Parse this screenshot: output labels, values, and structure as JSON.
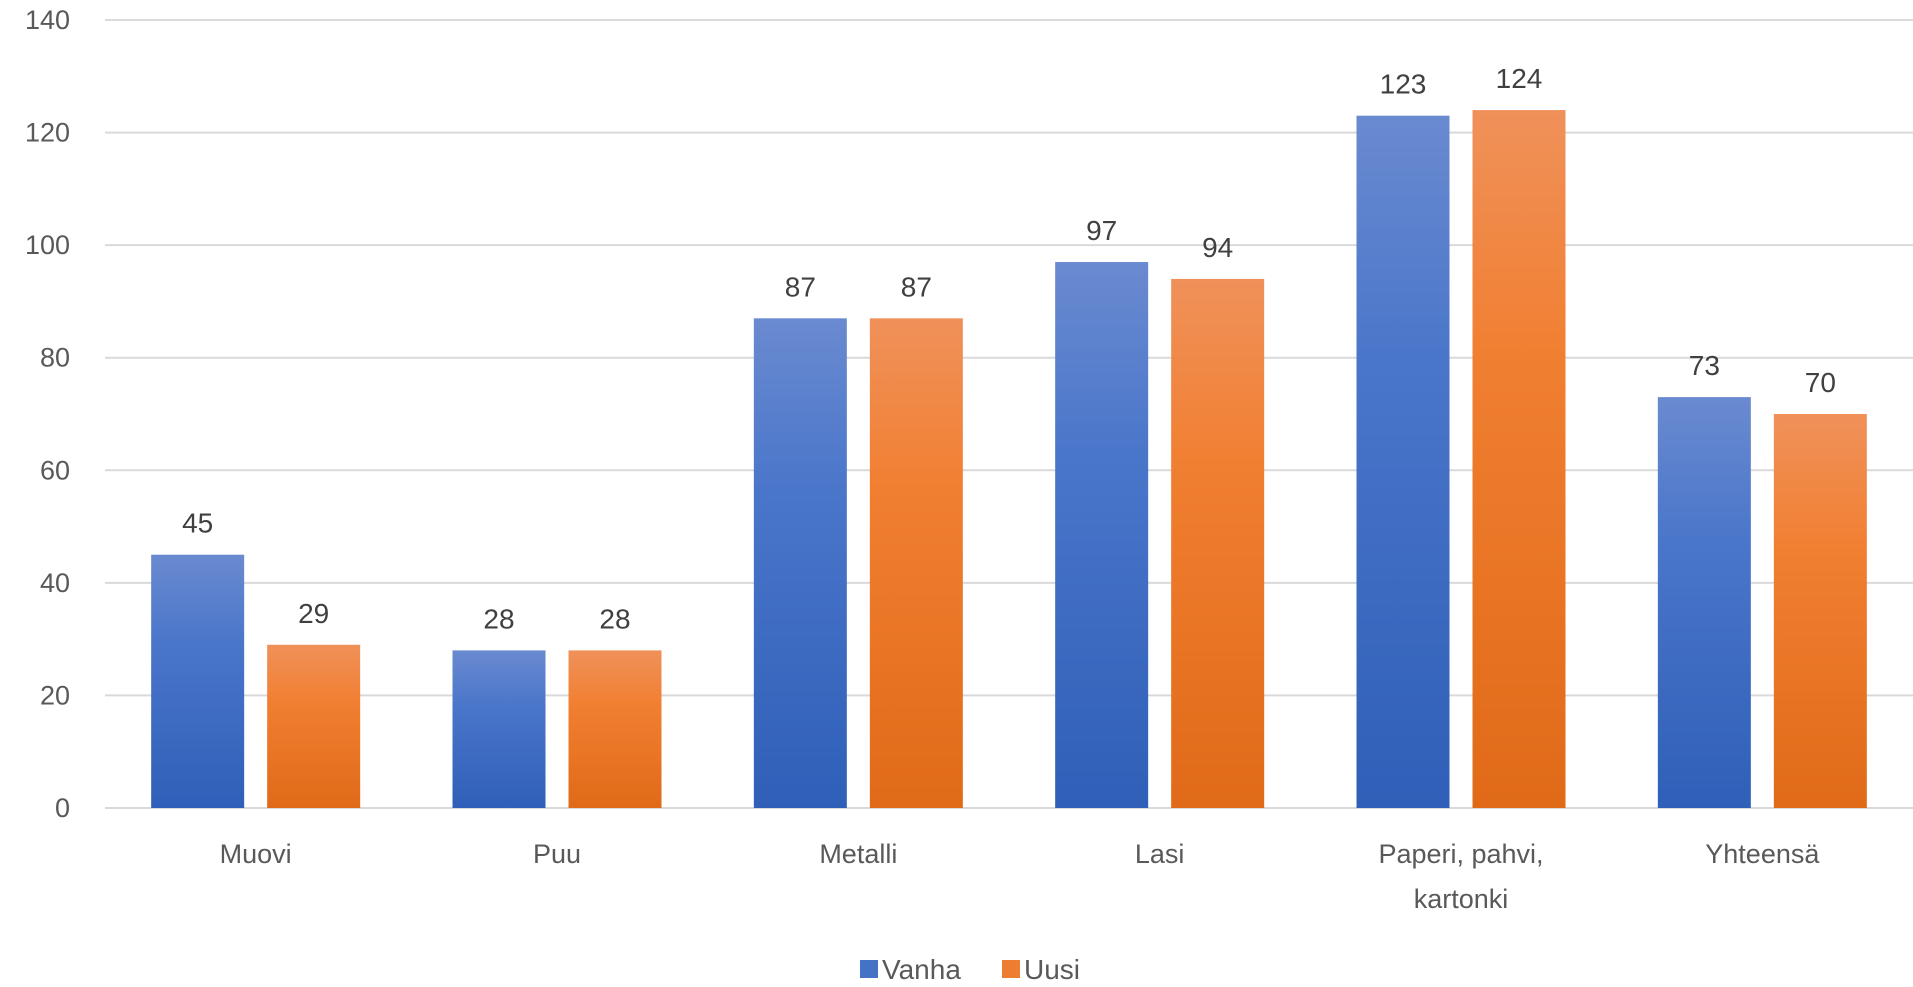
{
  "chart_data": {
    "type": "bar",
    "categories": [
      [
        "Muovi"
      ],
      [
        "Puu"
      ],
      [
        "Metalli"
      ],
      [
        "Lasi"
      ],
      [
        "Paperi, pahvi,",
        "kartonki"
      ],
      [
        "Yhteensä"
      ]
    ],
    "series": [
      {
        "name": "Vanha",
        "values": [
          45,
          28,
          87,
          97,
          123,
          73
        ],
        "color": "#4472c4"
      },
      {
        "name": "Uusi",
        "values": [
          29,
          28,
          87,
          94,
          124,
          70
        ],
        "color": "#ed7d31"
      }
    ],
    "data_labels": [
      [
        "45",
        "28",
        "87",
        "97",
        "123",
        "73"
      ],
      [
        "29",
        "28",
        "87",
        "94",
        "124",
        "70"
      ]
    ],
    "ylim": [
      0,
      140
    ],
    "yticks": [
      0,
      20,
      40,
      60,
      80,
      100,
      120,
      140
    ],
    "grid": true,
    "legend_position": "bottom"
  }
}
